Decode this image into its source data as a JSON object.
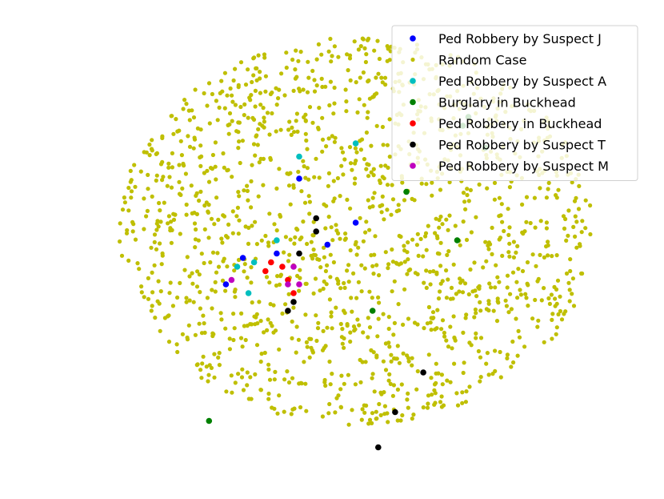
{
  "chart_data": {
    "type": "scatter",
    "title": "",
    "xlabel": "",
    "ylabel": "",
    "axes_visible": false,
    "grid": false,
    "legend_position": "top-right",
    "xlim": [
      0,
      100
    ],
    "ylim": [
      0,
      100
    ],
    "background_series": {
      "name": "Random Case",
      "color": "#bfbf00",
      "count": 1500,
      "distribution": "roughly circular cloud, center (50, 50), radius ~40"
    },
    "series": [
      {
        "name": "Ped Robbery by Suspect J",
        "color": "#0000ff",
        "points": [
          [
            28,
            40
          ],
          [
            37,
            47
          ],
          [
            31,
            46
          ],
          [
            46,
            49
          ],
          [
            51,
            54
          ],
          [
            41,
            64
          ]
        ]
      },
      {
        "name": "Random Case",
        "color": "#bfbf00",
        "points": []
      },
      {
        "name": "Ped Robbery by Suspect A",
        "color": "#00bfbf",
        "points": [
          [
            32,
            38
          ],
          [
            37,
            50
          ],
          [
            41,
            69
          ],
          [
            51,
            72
          ],
          [
            30,
            44
          ],
          [
            33,
            45
          ]
        ]
      },
      {
        "name": "Burglary in Buckhead",
        "color": "#008000",
        "points": [
          [
            25,
            9
          ],
          [
            54,
            34
          ],
          [
            60,
            61
          ],
          [
            70,
            76
          ],
          [
            71,
            78
          ],
          [
            74,
            71
          ],
          [
            69,
            50
          ]
        ]
      },
      {
        "name": "Ped Robbery in Buckhead",
        "color": "#ff0000",
        "points": [
          [
            35,
            43
          ],
          [
            36,
            45
          ],
          [
            38,
            44
          ],
          [
            39,
            41
          ],
          [
            40,
            38
          ]
        ]
      },
      {
        "name": "Ped Robbery by Suspect T",
        "color": "#000000",
        "points": [
          [
            41,
            47
          ],
          [
            44,
            52
          ],
          [
            44,
            55
          ],
          [
            40,
            36
          ],
          [
            39,
            34
          ],
          [
            63,
            20
          ],
          [
            58,
            11
          ],
          [
            55,
            3
          ]
        ]
      },
      {
        "name": "Ped Robbery by Suspect M",
        "color": "#bf00bf",
        "points": [
          [
            29,
            41
          ],
          [
            40,
            44
          ],
          [
            39,
            40
          ],
          [
            41,
            40
          ]
        ]
      }
    ]
  }
}
